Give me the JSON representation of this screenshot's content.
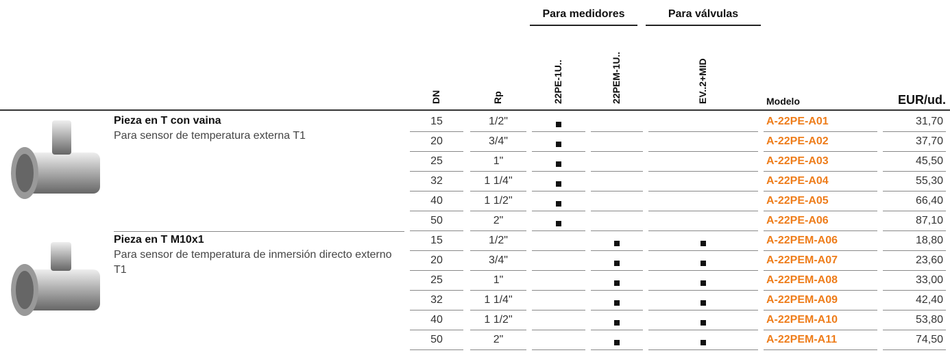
{
  "group_headers": [
    "Para medidores",
    "Para válvulas"
  ],
  "columns": {
    "dn": "DN",
    "rp": "Rp",
    "c1": "22PE-1U..",
    "c2": "22PEM-1U..",
    "c3": "EV..2+MID",
    "model": "Modelo",
    "price": "EUR/ud."
  },
  "products": [
    {
      "name": "Pieza en T con vaina",
      "description": "Para sensor de temperatura externa T1",
      "marks": [
        true,
        false,
        false
      ],
      "rows": [
        {
          "dn": "15",
          "rp": "1/2\"",
          "model": "A-22PE-A01",
          "price": "31,70"
        },
        {
          "dn": "20",
          "rp": "3/4\"",
          "model": "A-22PE-A02",
          "price": "37,70"
        },
        {
          "dn": "25",
          "rp": "1\"",
          "model": "A-22PE-A03",
          "price": "45,50"
        },
        {
          "dn": "32",
          "rp": "1 1/4\"",
          "model": "A-22PE-A04",
          "price": "55,30"
        },
        {
          "dn": "40",
          "rp": "1 1/2\"",
          "model": "A-22PE-A05",
          "price": "66,40"
        },
        {
          "dn": "50",
          "rp": "2\"",
          "model": "A-22PE-A06",
          "price": "87,10"
        }
      ]
    },
    {
      "name": "Pieza en T M10x1",
      "description": "Para sensor de temperatura de inmersión directo externo T1",
      "marks": [
        false,
        true,
        true
      ],
      "rows": [
        {
          "dn": "15",
          "rp": "1/2\"",
          "model": "A-22PEM-A06",
          "price": "18,80"
        },
        {
          "dn": "20",
          "rp": "3/4\"",
          "model": "A-22PEM-A07",
          "price": "23,60"
        },
        {
          "dn": "25",
          "rp": "1\"",
          "model": "A-22PEM-A08",
          "price": "33,00"
        },
        {
          "dn": "32",
          "rp": "1 1/4\"",
          "model": "A-22PEM-A09",
          "price": "42,40"
        },
        {
          "dn": "40",
          "rp": "1 1/2\"",
          "model": "A-22PEM-A10",
          "price": "53,80"
        },
        {
          "dn": "50",
          "rp": "2\"",
          "model": "A-22PEM-A11",
          "price": "74,50"
        }
      ]
    }
  ]
}
